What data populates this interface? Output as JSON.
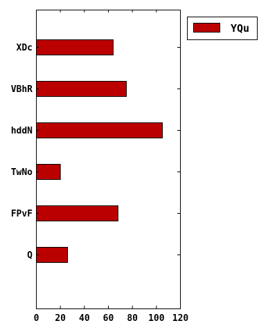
{
  "chart_data": {
    "type": "bar",
    "orientation": "horizontal",
    "categories": [
      "Q",
      "FPvF",
      "TwNo",
      "hddN",
      "VBhR",
      "XDc"
    ],
    "series": [
      {
        "name": "YQu",
        "values": [
          26,
          68,
          20,
          105,
          75,
          64
        ],
        "color": "#bb0000"
      }
    ],
    "xlim": [
      0,
      120
    ],
    "xticks": [
      0,
      20,
      40,
      60,
      80,
      100,
      120
    ],
    "grid": false,
    "legend_position": "outside-right-top"
  }
}
